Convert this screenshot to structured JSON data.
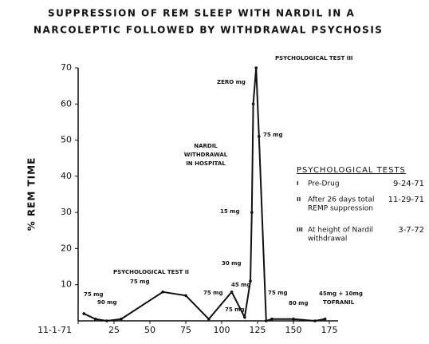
{
  "chart_data": {
    "type": "line",
    "title": [
      "SUPPRESSION OF REM SLEEP WITH NARDIL IN A",
      "NARCOLEPTIC FOLLOWED BY WITHDRAWAL PSYCHOSIS"
    ],
    "y_label": "% REM TIME",
    "x": [
      4,
      12,
      20,
      30,
      59,
      75,
      91,
      107,
      116,
      120,
      121,
      122,
      124,
      126,
      131,
      135,
      150,
      165,
      172
    ],
    "series": [
      {
        "color": "#111111",
        "values": [
          2,
          0.5,
          0,
          0.5,
          8,
          7,
          0.5,
          8,
          1,
          11,
          30,
          60,
          70,
          51,
          0,
          0.5,
          0.5,
          0,
          0.5
        ]
      }
    ],
    "xlim": [
      0,
      180
    ],
    "xticks": [
      {
        "value": 0,
        "label": "11-1-71"
      },
      25,
      50,
      75,
      100,
      125,
      150,
      175
    ],
    "ylim": [
      0,
      70
    ],
    "yticks": [
      10,
      20,
      30,
      40,
      50,
      60,
      70
    ],
    "annotations": [
      "75 mg",
      "90 mg",
      "PSYCHOLOGICAL TEST II",
      "75 mg",
      "75 mg",
      "45 mg",
      "75 mg",
      "ZERO mg",
      "PSYCHOLOGICAL TEST III",
      "75 mg",
      "NARDIL",
      "WITHDRAWAL",
      "IN HOSPITAL",
      "15 mg",
      "30 mg",
      "75 mg",
      "80 mg",
      "45mg + 10mg",
      "TOFRANIL"
    ],
    "test_table": {
      "title": "PSYCHOLOGICAL TESTS",
      "items": [
        {
          "numeral": "I",
          "lines": [
            "Pre-Drug"
          ],
          "date": "9-24-71"
        },
        {
          "numeral": "II",
          "lines": [
            "After 26 days total",
            "REMP suppression"
          ],
          "date": "11-29-71"
        },
        {
          "numeral": "III",
          "lines": [
            "At height of Nardil",
            "withdrawal"
          ],
          "date": "3-7-72"
        }
      ]
    }
  }
}
